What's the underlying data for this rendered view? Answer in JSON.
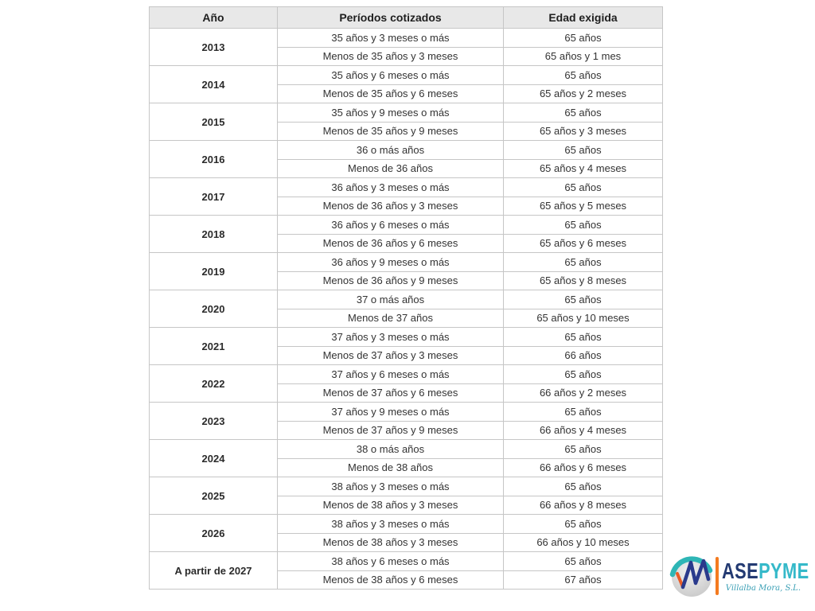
{
  "chart_data": {
    "type": "table",
    "columns": [
      "Año",
      "Períodos cotizados",
      "Edad exigida"
    ],
    "groups": [
      {
        "year": "2013",
        "rows": [
          {
            "periodo": "35 años y 3 meses o más",
            "edad": "65 años"
          },
          {
            "periodo": "Menos de 35 años y 3 meses",
            "edad": "65 años y 1 mes"
          }
        ]
      },
      {
        "year": "2014",
        "rows": [
          {
            "periodo": "35 años y 6 meses o más",
            "edad": "65 años"
          },
          {
            "periodo": "Menos de 35 años y 6 meses",
            "edad": "65 años y 2 meses"
          }
        ]
      },
      {
        "year": "2015",
        "rows": [
          {
            "periodo": "35 años y 9 meses o más",
            "edad": "65 años"
          },
          {
            "periodo": "Menos de 35 años y 9 meses",
            "edad": "65 años y 3 meses"
          }
        ]
      },
      {
        "year": "2016",
        "rows": [
          {
            "periodo": "36 o más años",
            "edad": "65 años"
          },
          {
            "periodo": "Menos de 36 años",
            "edad": "65 años y 4 meses"
          }
        ]
      },
      {
        "year": "2017",
        "rows": [
          {
            "periodo": "36 años y 3 meses o más",
            "edad": "65 años"
          },
          {
            "periodo": "Menos de 36 años y 3 meses",
            "edad": "65 años y 5 meses"
          }
        ]
      },
      {
        "year": "2018",
        "rows": [
          {
            "periodo": "36 años y 6 meses o más",
            "edad": "65 años"
          },
          {
            "periodo": "Menos de 36 años y 6 meses",
            "edad": "65 años y 6 meses"
          }
        ]
      },
      {
        "year": "2019",
        "rows": [
          {
            "periodo": "36 años y 9 meses o más",
            "edad": "65 años"
          },
          {
            "periodo": "Menos de 36 años y 9 meses",
            "edad": "65 años y 8 meses"
          }
        ]
      },
      {
        "year": "2020",
        "rows": [
          {
            "periodo": "37 o más años",
            "edad": "65 años"
          },
          {
            "periodo": "Menos de 37 años",
            "edad": "65 años y 10 meses"
          }
        ]
      },
      {
        "year": "2021",
        "rows": [
          {
            "periodo": "37 años y 3 meses o más",
            "edad": "65 años"
          },
          {
            "periodo": "Menos de 37 años y 3 meses",
            "edad": "66 años"
          }
        ]
      },
      {
        "year": "2022",
        "rows": [
          {
            "periodo": "37 años y 6 meses o más",
            "edad": "65 años"
          },
          {
            "periodo": "Menos de 37 años y 6 meses",
            "edad": "66 años y 2 meses"
          }
        ]
      },
      {
        "year": "2023",
        "rows": [
          {
            "periodo": "37 años y 9 meses o más",
            "edad": "65 años"
          },
          {
            "periodo": "Menos de 37 años y 9 meses",
            "edad": "66 años y 4 meses"
          }
        ]
      },
      {
        "year": "2024",
        "rows": [
          {
            "periodo": "38 o más años",
            "edad": "65 años"
          },
          {
            "periodo": "Menos de 38 años",
            "edad": "66 años y 6 meses"
          }
        ]
      },
      {
        "year": "2025",
        "rows": [
          {
            "periodo": "38 años y 3 meses o más",
            "edad": "65 años"
          },
          {
            "periodo": "Menos de 38 años y 3 meses",
            "edad": "66 años y 8 meses"
          }
        ]
      },
      {
        "year": "2026",
        "rows": [
          {
            "periodo": "38 años y 3 meses o más",
            "edad": "65 años"
          },
          {
            "periodo": "Menos de 38 años y 3 meses",
            "edad": "66 años y 10 meses"
          }
        ]
      },
      {
        "year": "A partir de 2027",
        "rows": [
          {
            "periodo": "38 años y 6 meses o más",
            "edad": "65 años"
          },
          {
            "periodo": "Menos de 38 años y 6 meses",
            "edad": "67 años"
          }
        ]
      }
    ]
  },
  "logo": {
    "text_primary": "ASE",
    "text_secondary": "PYME",
    "subtitle": "Villalba Mora, S.L.",
    "colors": {
      "navy": "#233a72",
      "teal": "#35b9c9",
      "orange": "#f47b20",
      "check_orange": "#e85c28",
      "sphere_gray": "#cfcfcf"
    }
  },
  "table_style": {
    "header_bg": "#e8e8e8",
    "border": "#c6c6c6",
    "text": "#333333"
  }
}
